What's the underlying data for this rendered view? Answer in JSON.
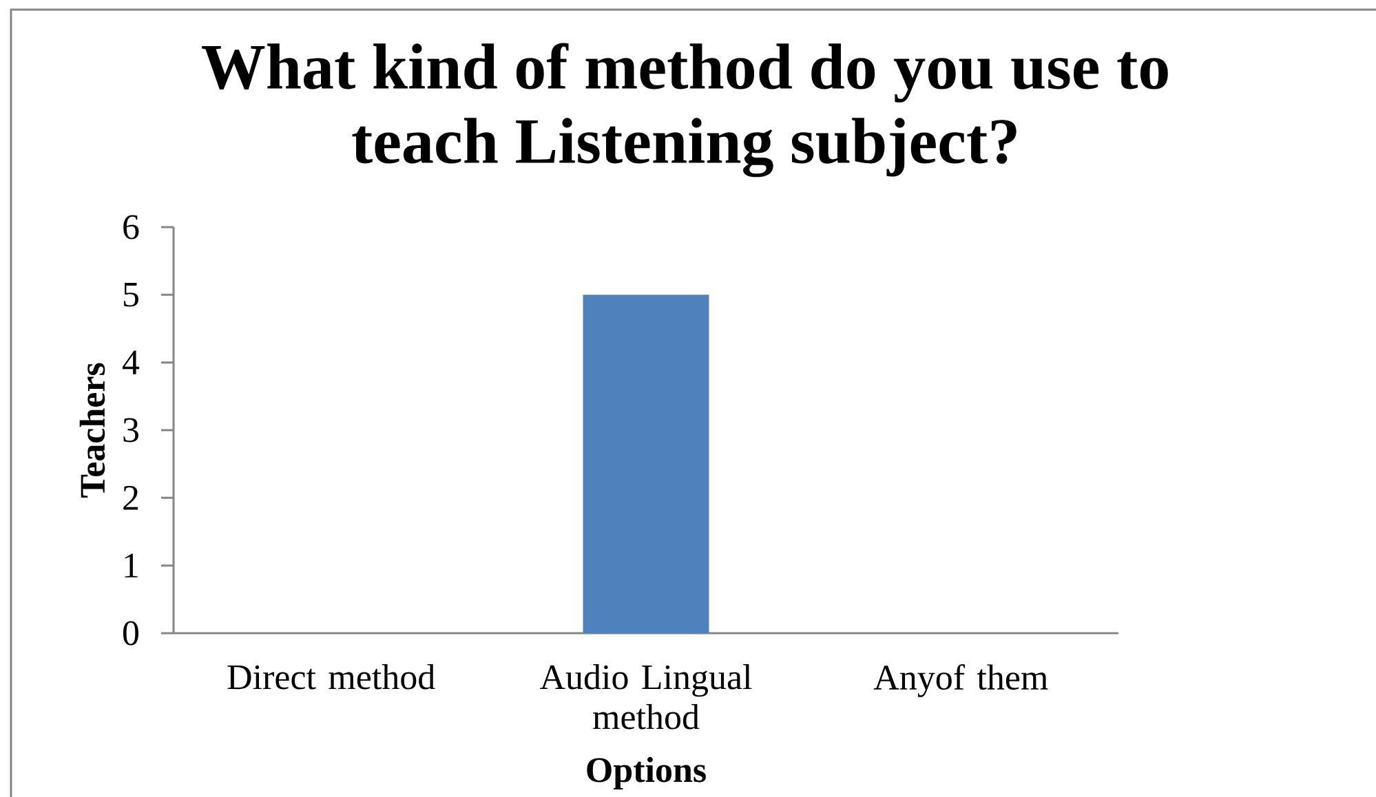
{
  "chart_data": {
    "type": "bar",
    "title": "What kind of method do you use to teach Listening subject?",
    "xlabel": "Options",
    "ylabel": "Teachers",
    "categories": [
      "Direct method",
      "Audio Lingual method",
      "Anyof them"
    ],
    "values": [
      0,
      5,
      0
    ],
    "color": "#4f81bd",
    "ylim": [
      0,
      6
    ],
    "yticks": [
      0,
      1,
      2,
      3,
      4,
      5,
      6
    ]
  }
}
